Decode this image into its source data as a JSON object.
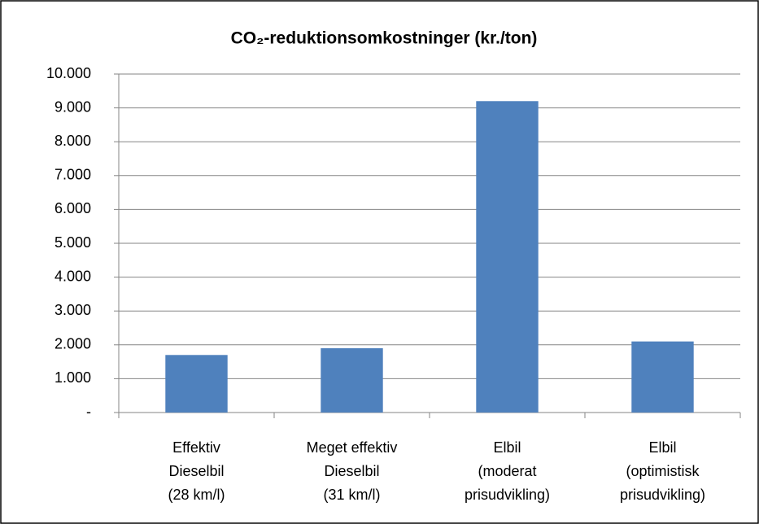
{
  "chart_data": {
    "type": "bar",
    "title": "CO₂-reduktionsomkostninger (kr./ton)",
    "categories": [
      [
        "Effektiv",
        "Dieselbil",
        "(28 km/l)"
      ],
      [
        "Meget effektiv",
        "Dieselbil",
        "(31 km/l)"
      ],
      [
        "Elbil",
        "(moderat",
        "prisudvikling)"
      ],
      [
        "Elbil",
        "(optimistisk",
        "prisudvikling)"
      ]
    ],
    "values": [
      1700,
      1900,
      9200,
      2100
    ],
    "color": "#4f81bd",
    "ylim": [
      0,
      10000
    ],
    "yticks": [
      {
        "value": 0,
        "label": "-"
      },
      {
        "value": 1000,
        "label": "1.000"
      },
      {
        "value": 2000,
        "label": "2.000"
      },
      {
        "value": 3000,
        "label": "3.000"
      },
      {
        "value": 4000,
        "label": "4.000"
      },
      {
        "value": 5000,
        "label": "5.000"
      },
      {
        "value": 6000,
        "label": "6.000"
      },
      {
        "value": 7000,
        "label": "7.000"
      },
      {
        "value": 8000,
        "label": "8.000"
      },
      {
        "value": 9000,
        "label": "9.000"
      },
      {
        "value": 10000,
        "label": "10.000"
      }
    ],
    "grid": true
  }
}
